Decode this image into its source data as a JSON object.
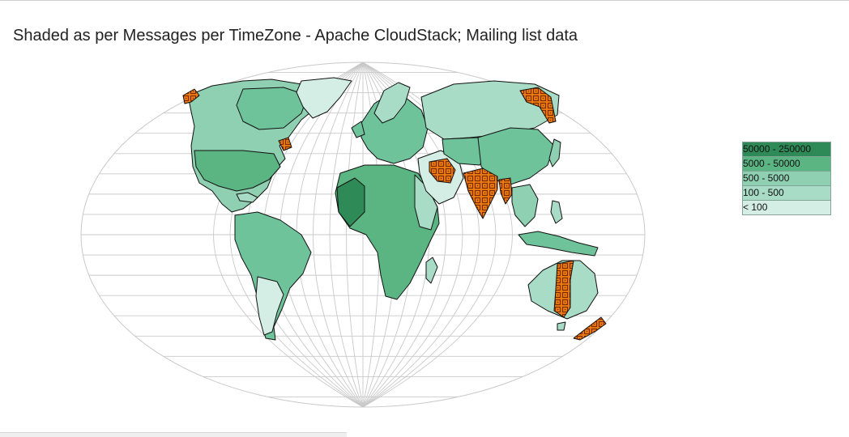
{
  "title": "Shaded as per Messages per TimeZone - Apache CloudStack; Mailing list data",
  "colors": {
    "band_1": "#2e8b57",
    "band_2": "#5ab582",
    "band_3": "#8fd0b2",
    "band_4": "#a9dcc6",
    "band_5": "#d4eee5",
    "lowest_fill": "#f4fbf8",
    "highlight_fill": "#f07d12",
    "highlight_pattern": "#7a2c00",
    "graticule": "#c9c9c9",
    "border": "#111111"
  },
  "legend": {
    "items": [
      {
        "label": "50000 - 250000"
      },
      {
        "label": "5000 - 50000"
      },
      {
        "label": "500 - 5000"
      },
      {
        "label": "100 - 500"
      },
      {
        "label": "< 100"
      }
    ]
  },
  "icons": {
    "highlight_pattern": "square-grid-dots-icon"
  }
}
